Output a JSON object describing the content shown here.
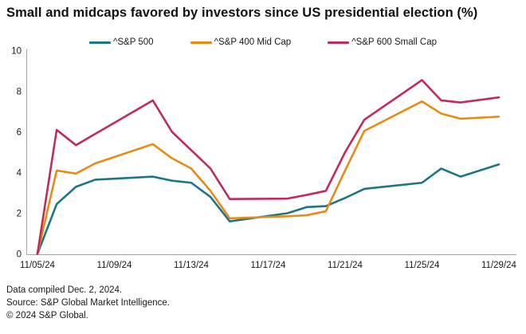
{
  "title": "Small and midcaps favored by investors since US presidential election (%)",
  "footer": {
    "compiled": "Data compiled Dec. 2, 2024.",
    "source": "Source: S&P Global Market Intelligence.",
    "copyright": "© 2024 S&P Global."
  },
  "chart_data": {
    "type": "line",
    "title": "Small and midcaps favored by investors since US presidential election (%)",
    "ylabel": "",
    "xlabel": "",
    "ylim": [
      0,
      10
    ],
    "y_ticks": [
      0,
      2,
      4,
      6,
      8,
      10
    ],
    "grid": "off",
    "legend_position": "top-center",
    "axis_color": "#a3a3a3",
    "x_tick_labels": [
      "11/05/24",
      "11/09/24",
      "11/13/24",
      "11/17/24",
      "11/21/24",
      "11/25/24",
      "11/29/24"
    ],
    "x_tick_day_offsets": [
      0,
      4,
      8,
      12,
      16,
      20,
      24
    ],
    "x_dates": [
      "11/05/24",
      "11/06/24",
      "11/07/24",
      "11/08/24",
      "11/11/24",
      "11/12/24",
      "11/13/24",
      "11/14/24",
      "11/15/24",
      "11/18/24",
      "11/19/24",
      "11/20/24",
      "11/21/24",
      "11/22/24",
      "11/25/24",
      "11/26/24",
      "11/27/24",
      "11/29/24"
    ],
    "x_day_offsets": [
      0,
      1,
      2,
      3,
      6,
      7,
      8,
      9,
      10,
      13,
      14,
      15,
      16,
      17,
      20,
      21,
      22,
      24
    ],
    "series": [
      {
        "name": "^S&P 500",
        "color": "#1B7687",
        "values": [
          0,
          2.45,
          3.3,
          3.65,
          3.8,
          3.6,
          3.5,
          2.8,
          1.6,
          2.0,
          2.3,
          2.35,
          2.75,
          3.2,
          3.5,
          4.2,
          3.8,
          4.4
        ]
      },
      {
        "name": "^S&P 400 Mid Cap",
        "color": "#E98A13",
        "values": [
          0,
          4.1,
          3.95,
          4.45,
          5.4,
          4.7,
          4.2,
          3.1,
          1.75,
          1.85,
          1.9,
          2.1,
          4.1,
          6.05,
          7.5,
          6.9,
          6.65,
          6.75
        ]
      },
      {
        "name": "^S&P 600 Small Cap",
        "color": "#C22A58",
        "values": [
          0,
          6.1,
          5.35,
          5.9,
          7.55,
          6.0,
          5.1,
          4.2,
          2.7,
          2.72,
          2.9,
          3.1,
          5.0,
          6.6,
          8.55,
          7.55,
          7.45,
          7.7
        ]
      }
    ]
  }
}
